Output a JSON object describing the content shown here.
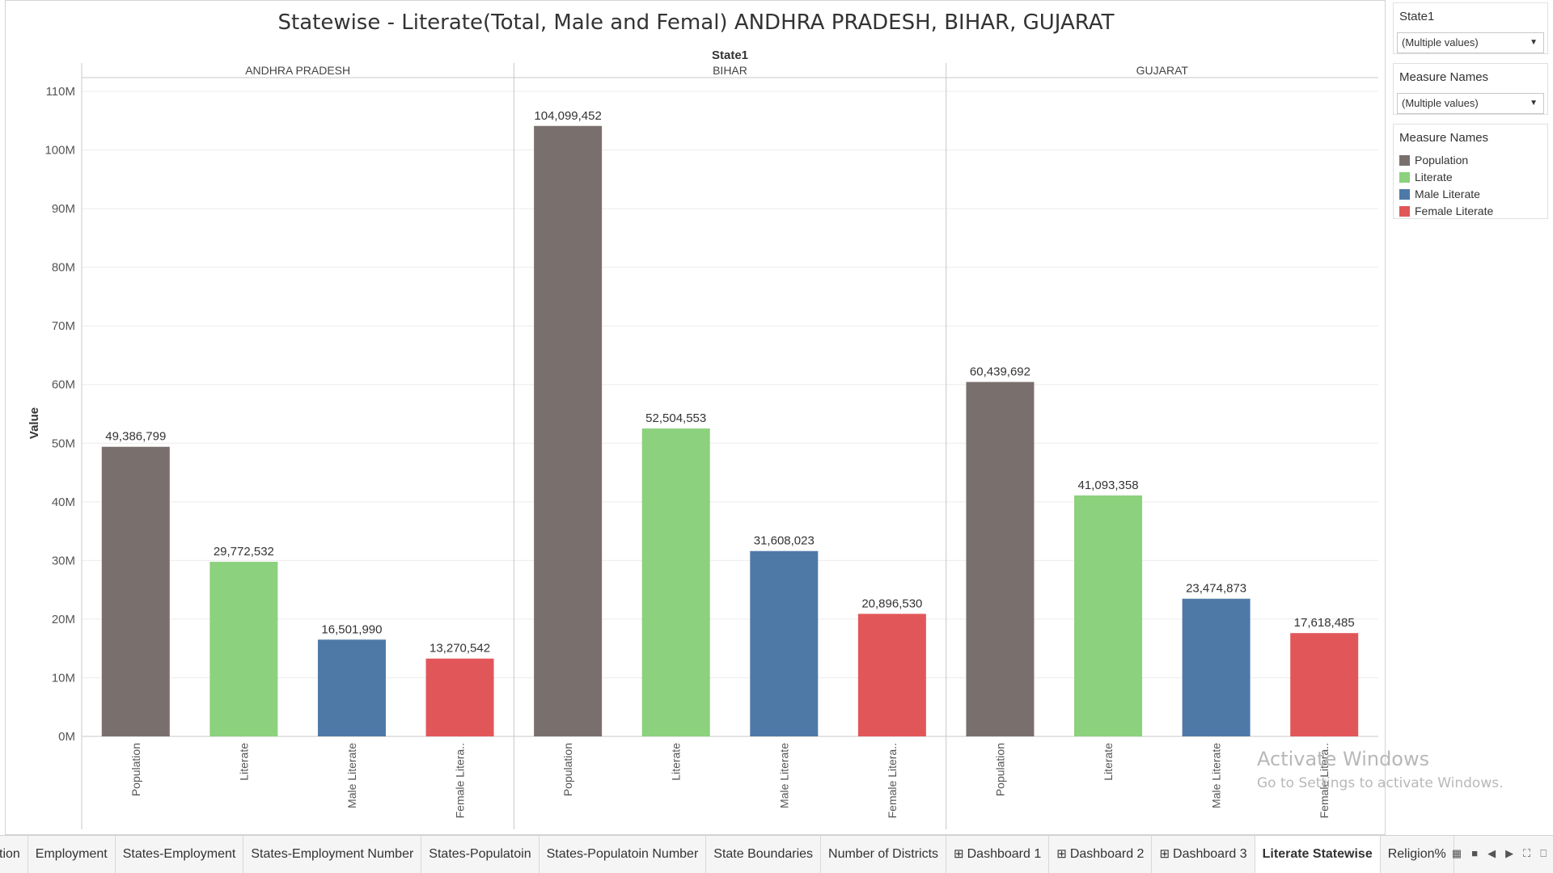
{
  "page_title": "Statewise - Literate(Total, Male and Femal) ANDHRA PRADESH, BIHAR, GUJARAT",
  "chart_data": {
    "type": "bar",
    "title": "Statewise - Literate(Total, Male and Femal) ANDHRA PRADESH, BIHAR, GUJARAT",
    "column_header": "State1",
    "ylabel": "Value",
    "ylim": [
      0,
      110000000
    ],
    "yticks": [
      0,
      10000000,
      20000000,
      30000000,
      40000000,
      50000000,
      60000000,
      70000000,
      80000000,
      90000000,
      100000000,
      110000000
    ],
    "ytick_labels": [
      "0M",
      "10M",
      "20M",
      "30M",
      "40M",
      "50M",
      "60M",
      "70M",
      "80M",
      "90M",
      "100M",
      "110M"
    ],
    "grid": true,
    "legend_position": "right",
    "categories": [
      "Population",
      "Literate",
      "Male Literate",
      "Female Litera.."
    ],
    "category_colors": [
      "#79706e",
      "#8cd17d",
      "#4e79a7",
      "#e15759"
    ],
    "panels": [
      {
        "state": "ANDHRA PRADESH",
        "values": [
          49386799,
          29772532,
          16501990,
          13270542
        ],
        "labels": [
          "49,386,799",
          "29,772,532",
          "16,501,990",
          "13,270,542"
        ]
      },
      {
        "state": "BIHAR",
        "values": [
          104099452,
          52504553,
          31608023,
          20896530
        ],
        "labels": [
          "104,099,452",
          "52,504,553",
          "31,608,023",
          "20,896,530"
        ]
      },
      {
        "state": "GUJARAT",
        "values": [
          60439692,
          41093358,
          23474873,
          17618485
        ],
        "labels": [
          "60,439,692",
          "41,093,358",
          "23,474,873",
          "17,618,485"
        ]
      }
    ]
  },
  "filters": [
    {
      "title": "State1",
      "value": "(Multiple values)"
    },
    {
      "title": "Measure Names",
      "value": "(Multiple values)"
    }
  ],
  "legend": {
    "title": "Measure Names",
    "items": [
      {
        "label": "Population",
        "color": "#79706e"
      },
      {
        "label": "Literate",
        "color": "#8cd17d"
      },
      {
        "label": "Male Literate",
        "color": "#4e79a7"
      },
      {
        "label": "Female Literate",
        "color": "#e15759"
      }
    ]
  },
  "tabs": [
    "tion",
    "Employment",
    "States-Employment",
    "States-Employment Number",
    "States-Populatoin",
    "States-Populatoin Number",
    "State Boundaries",
    "Number of Districts",
    "Dashboard 1",
    "Dashboard 2",
    "Dashboard 3",
    "Literate Statewise",
    "Religion%"
  ],
  "dashboard_tabs": [
    "Dashboard 1",
    "Dashboard 2",
    "Dashboard 3"
  ],
  "active_tab": "Literate Statewise",
  "watermark": {
    "line1": "Activate Windows",
    "line2": "Go to Settings to activate Windows."
  }
}
